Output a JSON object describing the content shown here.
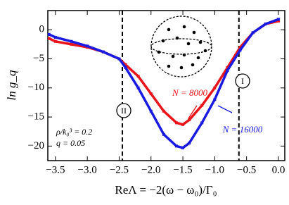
{
  "chart_data": {
    "type": "line",
    "xlabel": "ReΛ = −2(ω − ω₀)/Γ₀",
    "ylabel": "ln g_q",
    "x": [
      -3.6,
      -3.5,
      -3.25,
      -3.0,
      -2.75,
      -2.5,
      -2.4,
      -2.2,
      -2.0,
      -1.8,
      -1.6,
      -1.5,
      -1.4,
      -1.2,
      -1.0,
      -0.8,
      -0.6,
      -0.4,
      -0.2,
      0.0
    ],
    "series": [
      {
        "name": "N = 8000",
        "color": "#e8151b",
        "values": [
          -1.5,
          -2,
          -2.5,
          -3,
          -3.8,
          -5,
          -6,
          -8,
          -11,
          -14,
          -16,
          -16.3,
          -15.5,
          -13,
          -10,
          -6.5,
          -3,
          -0.5,
          1,
          1.5
        ]
      },
      {
        "name": "N = 16000",
        "color": "#1a1ae0",
        "values": [
          -0.8,
          -1.3,
          -2,
          -2.8,
          -3.8,
          -5,
          -6.5,
          -10,
          -14,
          -18,
          -20,
          -20.3,
          -19.5,
          -16,
          -12,
          -7,
          -3.5,
          -0.5,
          1,
          1.8
        ]
      }
    ],
    "vlines": [
      -2.45,
      -0.62
    ],
    "region_labels": [
      "II",
      "I"
    ],
    "annotations": [
      "ρ/k₀³ = 0.2",
      "q = 0.05"
    ],
    "xlim": [
      -3.62,
      0.1
    ],
    "ylim": [
      -22.5,
      3.3
    ],
    "xticks": [
      {
        "value": -3.5,
        "label": "−3.5"
      },
      {
        "value": -3.0,
        "label": "−3.0"
      },
      {
        "value": -2.5,
        "label": "−2.5"
      },
      {
        "value": -2.0,
        "label": "−2.0"
      },
      {
        "value": -1.5,
        "label": "−1.5"
      },
      {
        "value": -1.0,
        "label": "−1.0"
      },
      {
        "value": -0.5,
        "label": "−0.5"
      },
      {
        "value": 0.0,
        "label": "0.0"
      }
    ],
    "yticks": [
      0,
      {
        "value": -5,
        "label": "−5"
      },
      {
        "value": -10,
        "label": "−10"
      },
      {
        "value": -15,
        "label": "−15"
      },
      {
        "value": -20,
        "label": "−20"
      }
    ]
  }
}
